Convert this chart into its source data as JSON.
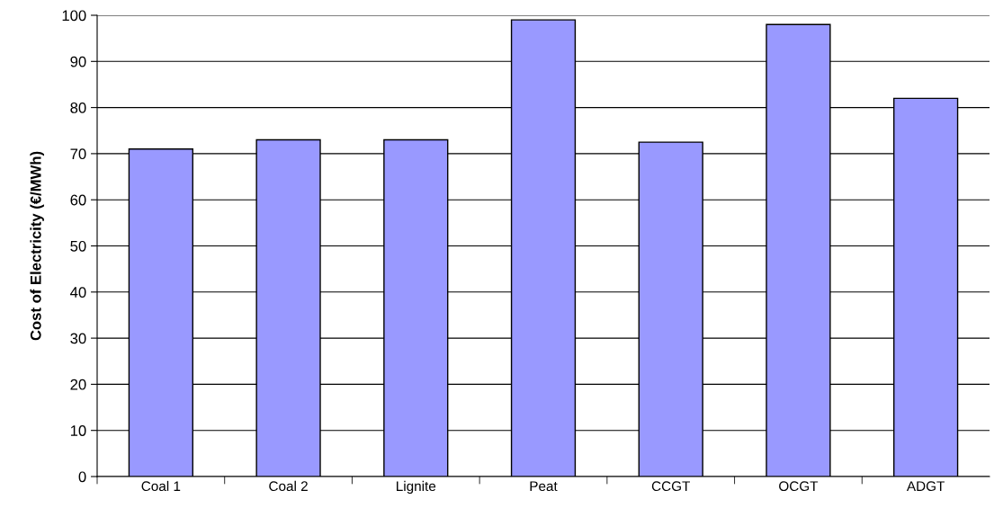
{
  "chart_data": {
    "type": "bar",
    "ylabel": "Cost of Electricity (€/MWh)",
    "categories": [
      "Coal 1",
      "Coal 2",
      "Lignite",
      "Peat",
      "CCGT",
      "OCGT",
      "ADGT"
    ],
    "values": [
      71,
      73,
      73,
      99,
      72.5,
      98,
      82
    ],
    "color": "#9999ff",
    "ylim": [
      0,
      100
    ],
    "yticks": [
      0,
      10,
      20,
      30,
      40,
      50,
      60,
      70,
      80,
      90,
      100
    ],
    "grid": "y",
    "legend": false
  }
}
